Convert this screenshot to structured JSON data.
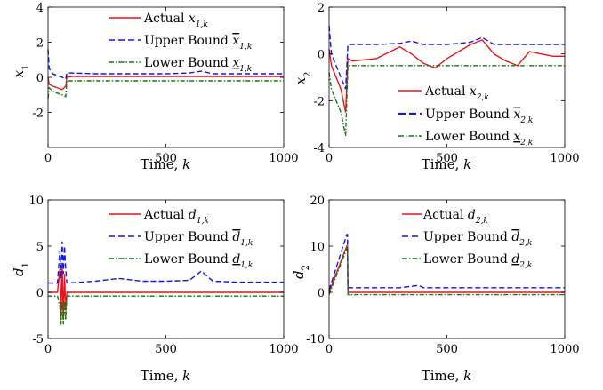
{
  "chart_data": [
    {
      "type": "line",
      "ylabel": "x1",
      "xlabel": "Time, k",
      "xlim": [
        0,
        1000
      ],
      "ylim": [
        -4,
        4
      ],
      "xticks": [
        "0",
        "500",
        "1000"
      ],
      "yticks": [
        "4",
        "2",
        "0",
        "-2"
      ],
      "legend": "top-right",
      "series": [
        {
          "name": "Actual x1,k",
          "color": "#e8141b",
          "style": "solid",
          "x": [
            0,
            5,
            20,
            40,
            60,
            75,
            80,
            100,
            200,
            300,
            400,
            500,
            600,
            700,
            800,
            900,
            1000
          ],
          "values": [
            0.0,
            -0.4,
            -0.5,
            -0.6,
            -0.7,
            -0.5,
            0.0,
            0.05,
            0.05,
            0.05,
            0.05,
            0.05,
            0.05,
            0.05,
            0.05,
            0.05,
            0.05
          ]
        },
        {
          "name": "Upper Bound x̄1,k",
          "color": "#1414e8",
          "style": "dashed",
          "x": [
            0,
            5,
            20,
            40,
            60,
            75,
            80,
            100,
            200,
            300,
            400,
            500,
            600,
            650,
            700,
            800,
            900,
            1000
          ],
          "values": [
            1.6,
            0.5,
            0.2,
            0.1,
            0.0,
            -0.1,
            0.25,
            0.25,
            0.2,
            0.2,
            0.2,
            0.2,
            0.25,
            0.35,
            0.2,
            0.2,
            0.2,
            0.2
          ]
        },
        {
          "name": "Lower Bound x̲1,k",
          "color": "#127a12",
          "style": "dashdot",
          "x": [
            0,
            5,
            20,
            40,
            60,
            75,
            80,
            100,
            200,
            300,
            400,
            500,
            600,
            700,
            800,
            900,
            1000
          ],
          "values": [
            -1.2,
            -0.6,
            -0.8,
            -0.9,
            -1.0,
            -1.1,
            -0.2,
            -0.2,
            -0.2,
            -0.2,
            -0.2,
            -0.2,
            -0.2,
            -0.2,
            -0.2,
            -0.2,
            -0.2
          ]
        }
      ]
    },
    {
      "type": "line",
      "ylabel": "x2",
      "xlabel": "Time, k",
      "xlim": [
        0,
        1000
      ],
      "ylim": [
        -4,
        2
      ],
      "xticks": [
        "0",
        "500",
        "1000"
      ],
      "yticks": [
        "2",
        "0",
        "-2",
        "-4"
      ],
      "legend": "bottom-right",
      "series": [
        {
          "name": "Actual x2,k",
          "color": "#e8141b",
          "style": "solid",
          "x": [
            0,
            10,
            30,
            50,
            70,
            80,
            100,
            200,
            300,
            350,
            400,
            450,
            500,
            550,
            600,
            650,
            700,
            750,
            800,
            850,
            900,
            950,
            1000
          ],
          "values": [
            0.2,
            -0.5,
            -1.0,
            -1.5,
            -2.5,
            -0.2,
            -0.3,
            -0.2,
            0.3,
            0.0,
            -0.4,
            -0.6,
            -0.2,
            0.1,
            0.4,
            0.6,
            0.0,
            -0.3,
            -0.5,
            0.1,
            0.0,
            -0.1,
            -0.1
          ]
        },
        {
          "name": "Upper Bound x̄2,k",
          "color": "#1414e8",
          "style": "dashed",
          "x": [
            0,
            10,
            30,
            50,
            70,
            80,
            100,
            200,
            300,
            350,
            400,
            500,
            600,
            650,
            700,
            800,
            900,
            1000
          ],
          "values": [
            1.2,
            0.0,
            -0.5,
            -1.0,
            -1.5,
            0.4,
            0.4,
            0.4,
            0.45,
            0.55,
            0.4,
            0.4,
            0.5,
            0.7,
            0.4,
            0.4,
            0.4,
            0.4
          ]
        },
        {
          "name": "Lower Bound x̲2,k",
          "color": "#127a12",
          "style": "dashdot",
          "x": [
            0,
            10,
            30,
            50,
            70,
            80,
            100,
            200,
            300,
            400,
            500,
            600,
            700,
            800,
            900,
            1000
          ],
          "values": [
            -0.8,
            -1.5,
            -2.0,
            -2.5,
            -3.5,
            -0.5,
            -0.5,
            -0.5,
            -0.5,
            -0.5,
            -0.5,
            -0.5,
            -0.5,
            -0.5,
            -0.5,
            -0.5
          ]
        }
      ]
    },
    {
      "type": "line",
      "ylabel": "d1",
      "xlabel": "Time, k",
      "xlim": [
        0,
        1000
      ],
      "ylim": [
        -5,
        10
      ],
      "xticks": [
        "0",
        "500",
        "1000"
      ],
      "yticks": [
        "10",
        "5",
        "0",
        "-5"
      ],
      "legend": "top-right",
      "series": [
        {
          "name": "Actual d1,k",
          "color": "#e8141b",
          "style": "solid",
          "x": [
            0,
            40,
            50,
            55,
            60,
            65,
            70,
            75,
            80,
            1000
          ],
          "values": [
            0.0,
            0.0,
            2.5,
            -3.0,
            3.0,
            -3.0,
            2.0,
            -2.0,
            0.0,
            0.0
          ]
        },
        {
          "name": "Upper Bound d̄1,k",
          "color": "#1414e8",
          "style": "dashed",
          "x": [
            0,
            40,
            50,
            55,
            60,
            65,
            70,
            75,
            80,
            200,
            300,
            400,
            500,
            600,
            650,
            700,
            800,
            900,
            1000
          ],
          "values": [
            1.0,
            1.0,
            4.5,
            1.5,
            5.5,
            2.0,
            5.0,
            2.5,
            1.0,
            1.2,
            1.5,
            1.2,
            1.2,
            1.3,
            2.3,
            1.2,
            1.1,
            1.1,
            1.1
          ]
        },
        {
          "name": "Lower Bound d̲1,k",
          "color": "#127a12",
          "style": "dashdot",
          "x": [
            0,
            40,
            50,
            55,
            60,
            65,
            70,
            75,
            80,
            1000
          ],
          "values": [
            -0.4,
            -0.4,
            -1.5,
            -3.5,
            -1.0,
            -3.5,
            -1.0,
            -3.0,
            -0.4,
            -0.4
          ]
        }
      ]
    },
    {
      "type": "line",
      "ylabel": "d2",
      "xlabel": "Time, k",
      "xlim": [
        0,
        1000
      ],
      "ylim": [
        -10,
        20
      ],
      "xticks": [
        "0",
        "500",
        "1000"
      ],
      "yticks": [
        "20",
        "10",
        "0",
        "-10"
      ],
      "legend": "top-right",
      "series": [
        {
          "name": "Actual d2,k",
          "color": "#e8141b",
          "style": "solid",
          "x": [
            0,
            75,
            78,
            80,
            1000
          ],
          "values": [
            0.0,
            10.0,
            10.0,
            0.0,
            0.0
          ]
        },
        {
          "name": "Upper Bound d̄2,k",
          "color": "#1414e8",
          "style": "dashed",
          "x": [
            0,
            75,
            78,
            80,
            200,
            300,
            380,
            400,
            500,
            600,
            700,
            800,
            900,
            1000
          ],
          "values": [
            0.5,
            12.5,
            12.5,
            1.0,
            1.0,
            1.0,
            1.5,
            1.0,
            1.0,
            1.0,
            1.0,
            1.0,
            1.0,
            1.0
          ]
        },
        {
          "name": "Lower Bound d̲2,k",
          "color": "#127a12",
          "style": "dashdot",
          "x": [
            0,
            75,
            78,
            80,
            1000
          ],
          "values": [
            -0.5,
            9.5,
            9.5,
            -0.5,
            -0.5
          ]
        }
      ]
    }
  ],
  "labels": {
    "p1_ylab": "x",
    "p1_ysub": "1",
    "p2_ylab": "x",
    "p2_ysub": "2",
    "p3_ylab": "d",
    "p3_ysub": "1",
    "p4_ylab": "d",
    "p4_ysub": "2",
    "xlab_main": "Time,",
    "xlab_var": "k",
    "actual": "Actual",
    "upper": "Upper Bound",
    "lower": "Lower Bound",
    "sub1k": "1,k",
    "sub2k": "2,k"
  }
}
